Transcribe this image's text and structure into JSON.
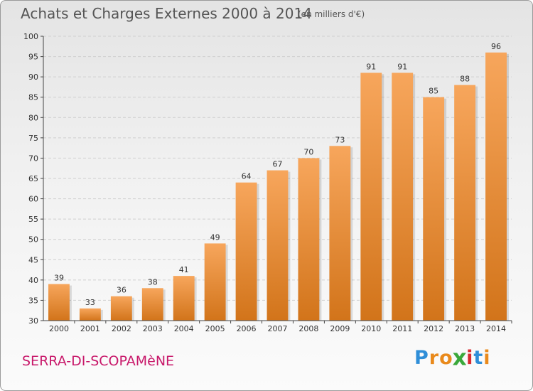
{
  "header": {
    "title": "Achats et Charges Externes 2000 à 2014",
    "unit_note": "(en milliers d'€)"
  },
  "footer": {
    "place": "SERRA-DI-SCOPAMèNE",
    "logo_letters": [
      "P",
      "r",
      "o",
      "x",
      "i",
      "t",
      "i"
    ],
    "logo_colors": [
      "#2f8ed8",
      "#e98a1c",
      "#e98a1c",
      "#3aa83a",
      "#d9282f",
      "#2f8ed8",
      "#e98a1c"
    ]
  },
  "colors": {
    "bar_top": "#f7a65c",
    "bar_bottom": "#d2741a",
    "axis": "#444444",
    "grid": "#cfcfcf",
    "place": "#c8186a"
  },
  "chart_data": {
    "type": "bar",
    "title": "Achats et Charges Externes 2000 à 2014",
    "xlabel": "",
    "ylabel": "",
    "categories": [
      "2000",
      "2001",
      "2002",
      "2003",
      "2004",
      "2005",
      "2006",
      "2007",
      "2008",
      "2009",
      "2010",
      "2011",
      "2012",
      "2013",
      "2014"
    ],
    "values": [
      39,
      33,
      36,
      38,
      41,
      49,
      64,
      67,
      70,
      73,
      91,
      91,
      85,
      88,
      96
    ],
    "ylim": [
      30,
      100
    ],
    "yticks": [
      30,
      35,
      40,
      45,
      50,
      55,
      60,
      65,
      70,
      75,
      80,
      85,
      90,
      95,
      100
    ],
    "grid": true,
    "data_labels": true
  }
}
